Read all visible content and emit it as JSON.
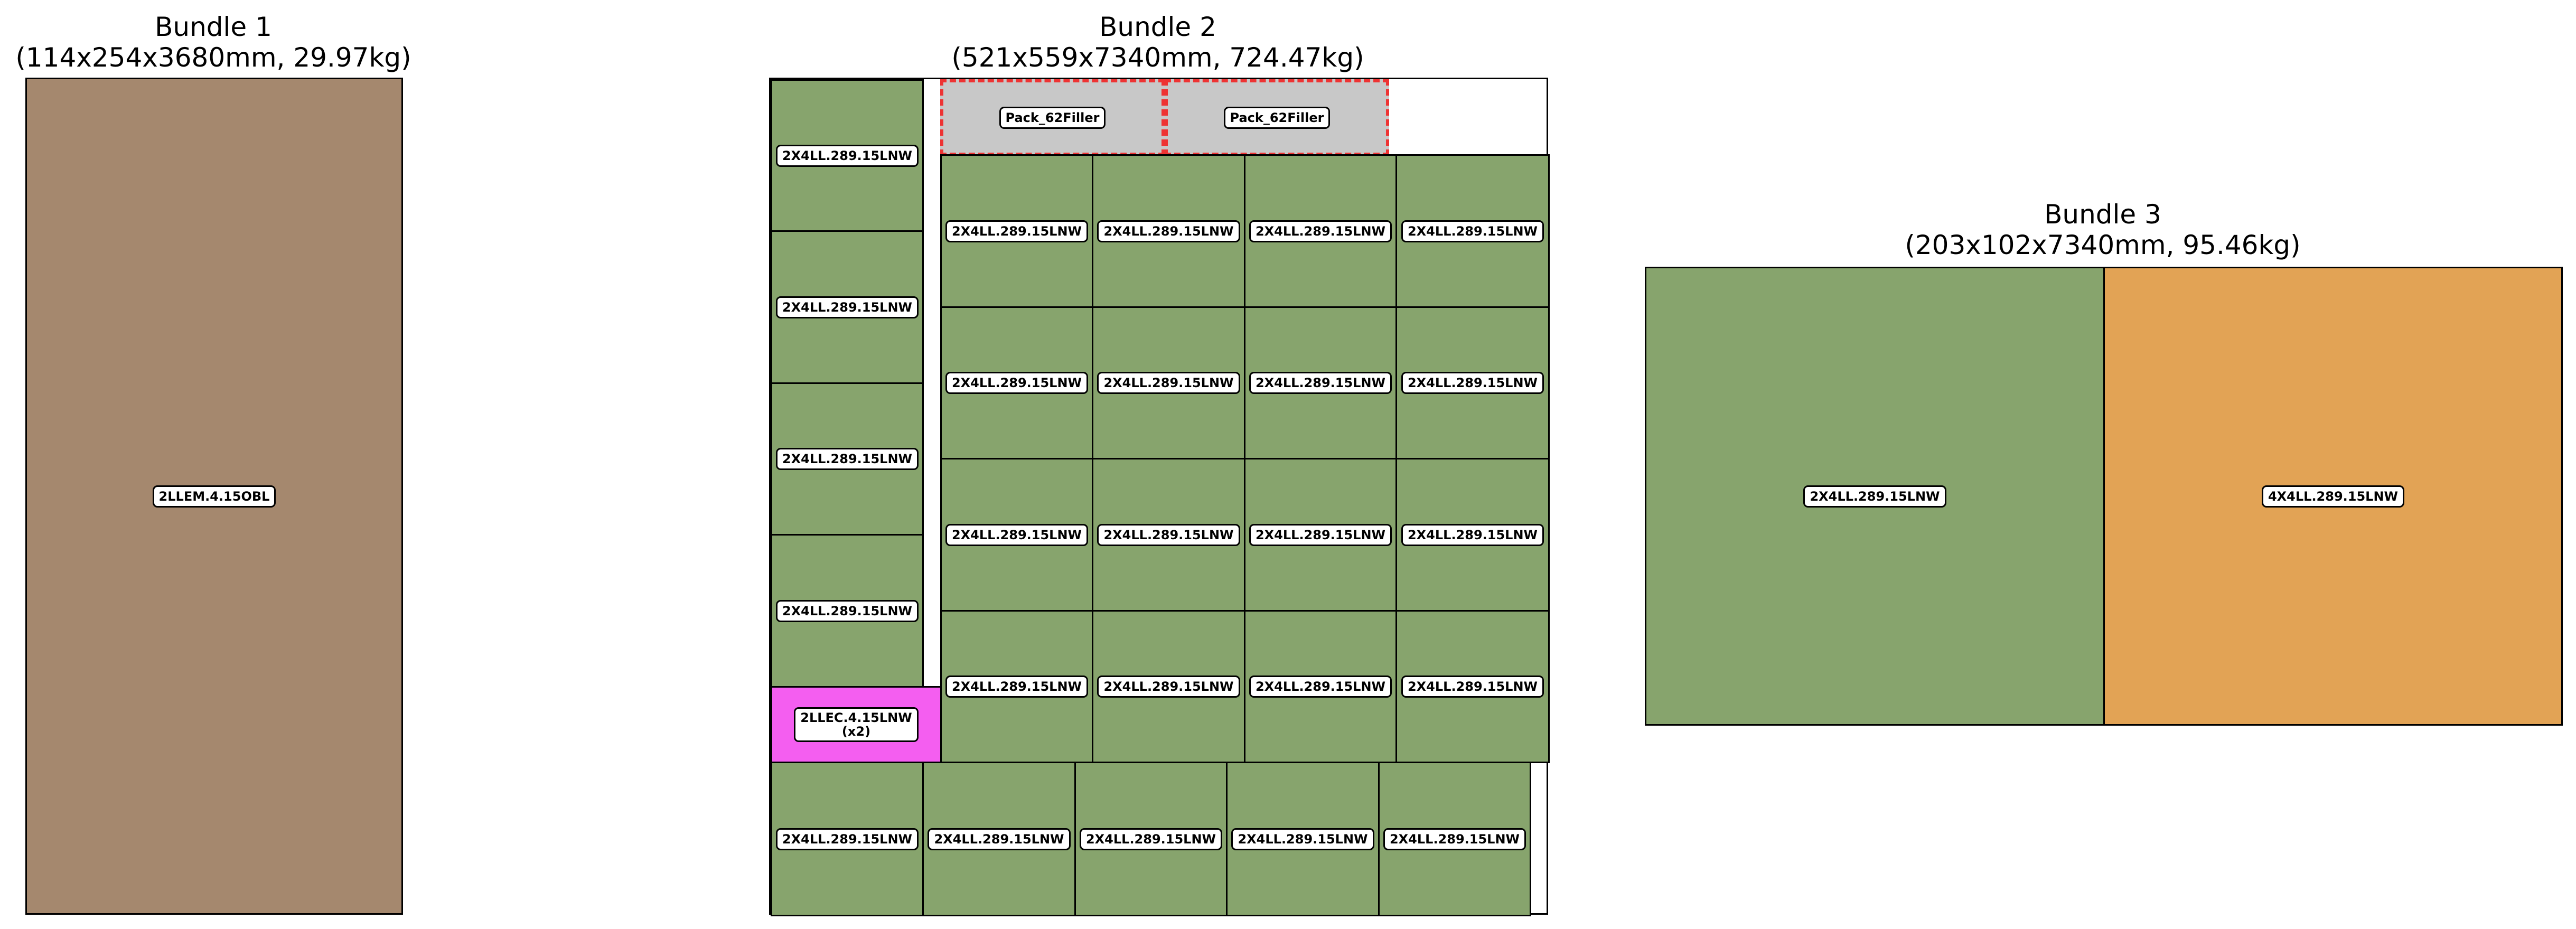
{
  "colors": {
    "green": "#87a46d",
    "brown": "#a5886e",
    "orange": "#e2a355",
    "magenta": "#f45ef0",
    "filler_fill": "#c8c8c8",
    "filler_border": "#ee3333"
  },
  "bundles": [
    {
      "title": "Bundle 1",
      "subtitle": "(114x254x3680mm, 29.97kg)",
      "pieces": [
        {
          "label": "2LLEM.4.15OBL",
          "color": "#a5886e"
        }
      ]
    },
    {
      "title": "Bundle 2",
      "subtitle": "(521x559x7340mm, 724.47kg)",
      "pieces": [
        {
          "label": "Pack_62Filler",
          "color": "#c8c8c8",
          "filler": true
        },
        {
          "label": "Pack_62Filler",
          "color": "#c8c8c8",
          "filler": true
        },
        {
          "label": "2X4LL.289.15LNW",
          "color": "#87a46d"
        },
        {
          "label": "2X4LL.289.15LNW",
          "color": "#87a46d"
        },
        {
          "label": "2X4LL.289.15LNW",
          "color": "#87a46d"
        },
        {
          "label": "2X4LL.289.15LNW",
          "color": "#87a46d"
        },
        {
          "label": "2LLEC.4.15LNW\n(x2)",
          "color": "#f45ef0"
        },
        {
          "label": "2X4LL.289.15LNW",
          "color": "#87a46d"
        },
        {
          "label": "2X4LL.289.15LNW",
          "color": "#87a46d"
        },
        {
          "label": "2X4LL.289.15LNW",
          "color": "#87a46d"
        },
        {
          "label": "2X4LL.289.15LNW",
          "color": "#87a46d"
        },
        {
          "label": "2X4LL.289.15LNW",
          "color": "#87a46d"
        },
        {
          "label": "2X4LL.289.15LNW",
          "color": "#87a46d"
        },
        {
          "label": "2X4LL.289.15LNW",
          "color": "#87a46d"
        },
        {
          "label": "2X4LL.289.15LNW",
          "color": "#87a46d"
        },
        {
          "label": "2X4LL.289.15LNW",
          "color": "#87a46d"
        },
        {
          "label": "2X4LL.289.15LNW",
          "color": "#87a46d"
        },
        {
          "label": "2X4LL.289.15LNW",
          "color": "#87a46d"
        },
        {
          "label": "2X4LL.289.15LNW",
          "color": "#87a46d"
        },
        {
          "label": "2X4LL.289.15LNW",
          "color": "#87a46d"
        },
        {
          "label": "2X4LL.289.15LNW",
          "color": "#87a46d"
        },
        {
          "label": "2X4LL.289.15LNW",
          "color": "#87a46d"
        },
        {
          "label": "2X4LL.289.15LNW",
          "color": "#87a46d"
        },
        {
          "label": "2X4LL.289.15LNW",
          "color": "#87a46d"
        },
        {
          "label": "2X4LL.289.15LNW",
          "color": "#87a46d"
        },
        {
          "label": "2X4LL.289.15LNW",
          "color": "#87a46d"
        },
        {
          "label": "2X4LL.289.15LNW",
          "color": "#87a46d"
        },
        {
          "label": "2X4LL.289.15LNW",
          "color": "#87a46d"
        }
      ]
    },
    {
      "title": "Bundle 3",
      "subtitle": "(203x102x7340mm, 95.46kg)",
      "pieces": [
        {
          "label": "2X4LL.289.15LNW",
          "color": "#87a46d"
        },
        {
          "label": "4X4LL.289.15LNW",
          "color": "#e2a355"
        }
      ]
    }
  ]
}
